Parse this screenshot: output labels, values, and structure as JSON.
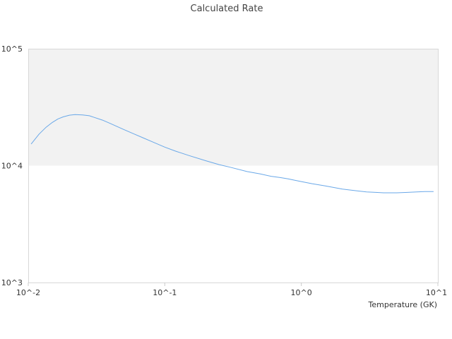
{
  "chart_data": {
    "type": "line",
    "title": "Calculated Rate",
    "xlabel": "Temperature (GK)",
    "ylabel": "",
    "x_scale": "log",
    "y_scale": "log",
    "xlim": [
      0.01,
      10
    ],
    "ylim": [
      1000,
      100000
    ],
    "x_ticks": [
      {
        "value": 0.01,
        "label": "10^-2"
      },
      {
        "value": 0.1,
        "label": "10^-1"
      },
      {
        "value": 1,
        "label": "10^0"
      },
      {
        "value": 10,
        "label": "10^1"
      }
    ],
    "y_ticks": [
      {
        "value": 1000,
        "label": "10^3"
      },
      {
        "value": 10000,
        "label": "10^4"
      },
      {
        "value": 100000,
        "label": "10^5"
      }
    ],
    "shaded_band": {
      "from": 10000,
      "to": 100000,
      "color": "#f2f2f2"
    },
    "grid": false,
    "legend": "none",
    "series": [
      {
        "color": "#6aa8e8",
        "x": [
          0.0105,
          0.012,
          0.0135,
          0.015,
          0.0165,
          0.018,
          0.02,
          0.022,
          0.025,
          0.028,
          0.03,
          0.035,
          0.04,
          0.05,
          0.06,
          0.07,
          0.08,
          0.1,
          0.12,
          0.15,
          0.2,
          0.25,
          0.3,
          0.4,
          0.5,
          0.6,
          0.7,
          0.8,
          1.0,
          1.2,
          1.5,
          2.0,
          2.5,
          3.0,
          3.5,
          4.0,
          5.0,
          6.0,
          7.0,
          8.0,
          9.3
        ],
        "y": [
          15300,
          18600,
          21300,
          23400,
          25100,
          26100,
          27000,
          27300,
          27100,
          26700,
          26000,
          24500,
          22900,
          20400,
          18600,
          17200,
          16100,
          14400,
          13300,
          12200,
          11000,
          10200,
          9700,
          8900,
          8500,
          8100,
          7900,
          7700,
          7300,
          7000,
          6700,
          6300,
          6100,
          5950,
          5900,
          5850,
          5850,
          5900,
          5950,
          6000,
          6000
        ]
      }
    ]
  }
}
